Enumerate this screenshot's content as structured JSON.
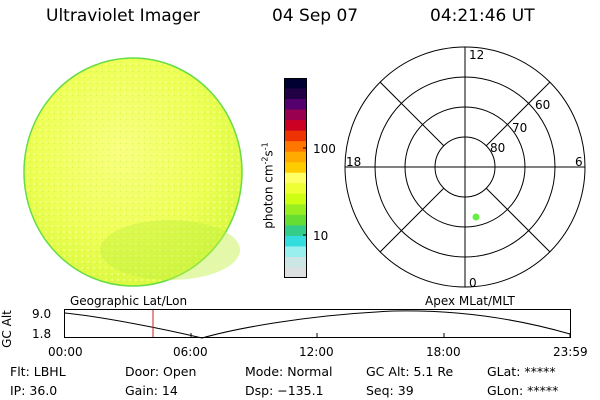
{
  "header": {
    "title": "Ultraviolet Imager",
    "date": "04 Sep 07",
    "time": "04:21:46 UT"
  },
  "colorbar": {
    "unit": "photon cm-2s-1",
    "ticks": [
      "100",
      "10"
    ],
    "colors": [
      "#000033",
      "#220044",
      "#55006f",
      "#99004f",
      "#cc0022",
      "#ee3300",
      "#ff7700",
      "#ffaa00",
      "#ffcc00",
      "#ffff66",
      "#eeff33",
      "#ccff11",
      "#99ee22",
      "#66dd33",
      "#33cc88",
      "#33dddd",
      "#99eeee",
      "#cce6e6",
      "#dde0e0"
    ]
  },
  "polar": {
    "mlt_labels": [
      "12",
      "18",
      "6",
      "0"
    ],
    "lat_labels": [
      "60",
      "70",
      "80"
    ],
    "point_color": "#66ee44"
  },
  "panel": {
    "geo_label": "Geographic Lat/Lon",
    "apex_label": "Apex MLat/MLT",
    "axis_title": "GC Alt",
    "y_ticks": [
      "9.0",
      "1.8"
    ],
    "x_ticks": [
      "00:00",
      "06:00",
      "12:00",
      "18:00",
      "23:59"
    ]
  },
  "info": {
    "flt": "Flt: LBHL",
    "ip": "IP: 36.0",
    "door": "Door: Open",
    "gain": "Gain: 14",
    "mode": "Mode: Normal",
    "dsp": "Dsp: −135.1",
    "gcalt": "GC Alt: 5.1 Re",
    "seq": "Seq: 39",
    "glat": "GLat: *****",
    "glon": "GLon: *****"
  },
  "colors": {
    "disk_fill": "#f0ff60",
    "disk_edge": "#66dd44",
    "marker": "#cc2222"
  }
}
